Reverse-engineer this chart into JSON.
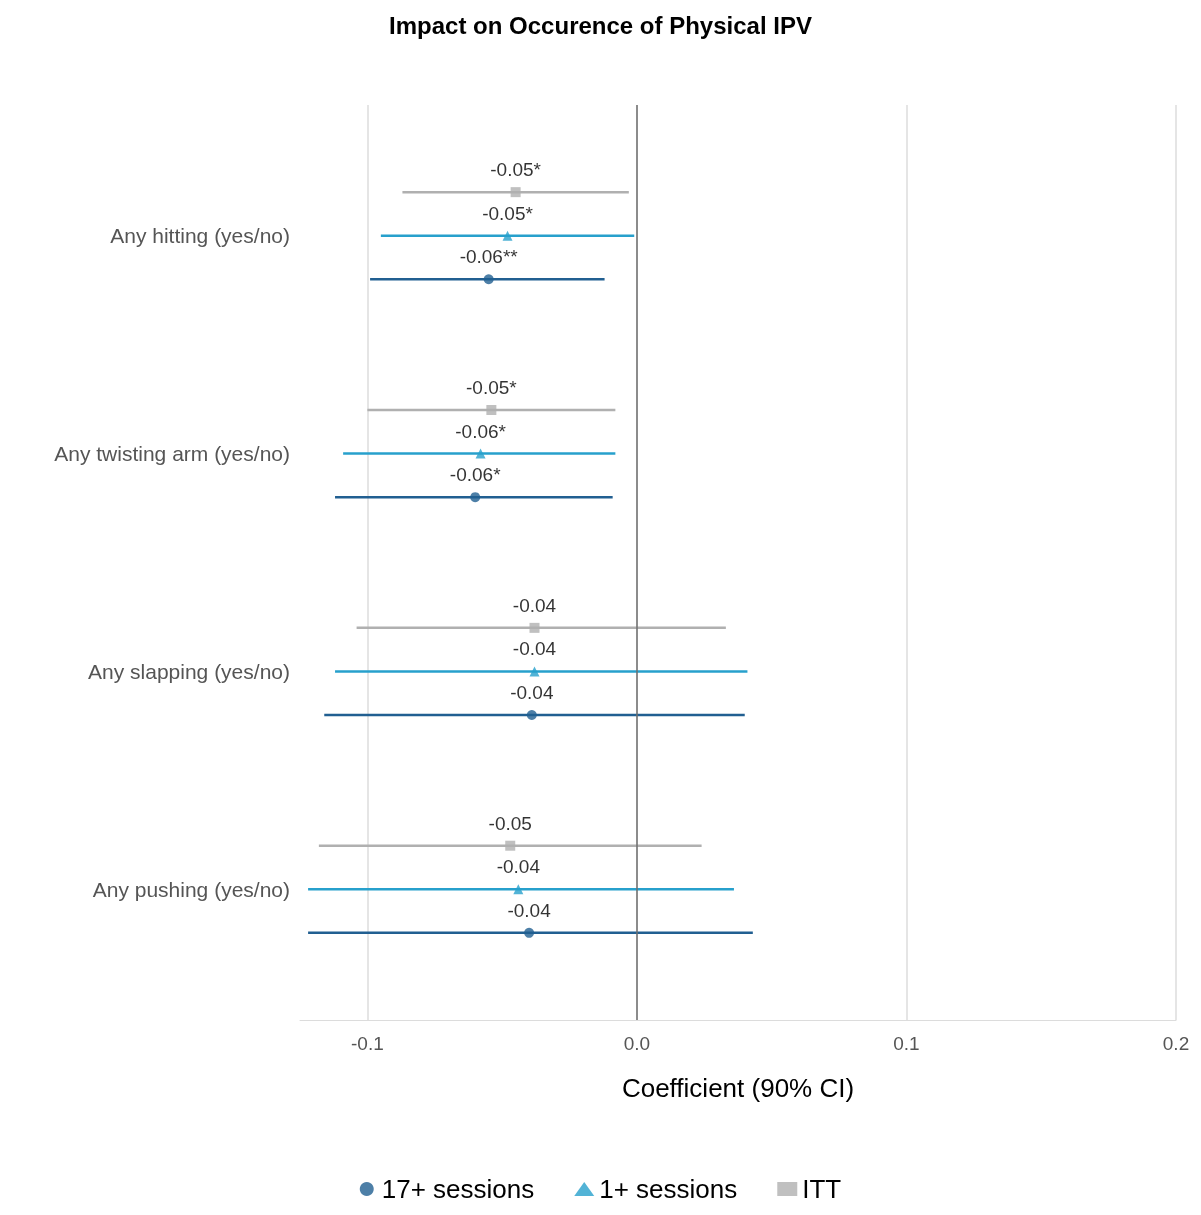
{
  "chart_data": {
    "type": "scatter",
    "orientation": "horizontal",
    "title": "Impact on Occurence of Physical IPV",
    "xlabel": "Coefficient (90% CI)",
    "categories": [
      "Any hitting (yes/no)",
      "Any twisting arm (yes/no)",
      "Any slapping (yes/no)",
      "Any pushing (yes/no)"
    ],
    "series": [
      {
        "name": "17+ sessions",
        "color": "#215f91",
        "marker": "circle",
        "values": [
          -0.055,
          -0.06,
          -0.039,
          -0.04
        ],
        "errors": [
          [
            -0.099,
            -0.012
          ],
          [
            -0.112,
            -0.009
          ],
          [
            -0.116,
            0.04
          ],
          [
            -0.122,
            0.043
          ]
        ],
        "value_labels": [
          "-0.06**",
          "-0.06*",
          "-0.04",
          "-0.04"
        ]
      },
      {
        "name": "1+ sessions",
        "color": "#27a0cc",
        "marker": "triangle",
        "values": [
          -0.048,
          -0.058,
          -0.038,
          -0.044
        ],
        "errors": [
          [
            -0.095,
            -0.001
          ],
          [
            -0.109,
            -0.008
          ],
          [
            -0.112,
            0.041
          ],
          [
            -0.122,
            0.036
          ]
        ],
        "value_labels": [
          "-0.05*",
          "-0.06*",
          "-0.04",
          "-0.04"
        ]
      },
      {
        "name": "ITT",
        "color": "#b0b0b0",
        "marker": "square",
        "values": [
          -0.045,
          -0.054,
          -0.038,
          -0.047
        ],
        "errors": [
          [
            -0.087,
            -0.003
          ],
          [
            -0.1,
            -0.008
          ],
          [
            -0.104,
            0.033
          ],
          [
            -0.118,
            0.024
          ]
        ],
        "value_labels": [
          "-0.05*",
          "-0.05*",
          "-0.04",
          "-0.05"
        ]
      }
    ],
    "xlim": [
      -0.125,
      0.2
    ],
    "xticks": [
      -0.1,
      {
        "value": 0,
        "label": "0.0"
      },
      0.1,
      0.2
    ],
    "ref_lines": [
      {
        "axis": "x",
        "value": 0,
        "color": "#6e6e6e"
      }
    ],
    "grid": "x",
    "legend": "bottom"
  }
}
